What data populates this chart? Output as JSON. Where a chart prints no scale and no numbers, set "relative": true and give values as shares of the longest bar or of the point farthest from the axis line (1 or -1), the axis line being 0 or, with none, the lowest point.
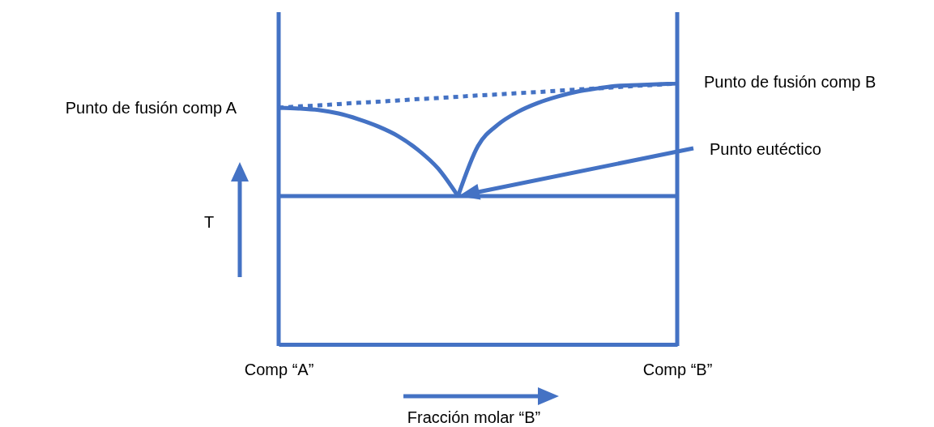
{
  "chart_data": {
    "type": "line",
    "relative": true,
    "xlabel": "Fracción molar “B”",
    "ylabel": "T",
    "categories": [
      "Comp “A”",
      null,
      null,
      null,
      null,
      null,
      null,
      null,
      null,
      null,
      null,
      null,
      null,
      null,
      null,
      null,
      null,
      null,
      null,
      null,
      "Comp “B”"
    ],
    "marker": "none",
    "series": [
      {
        "color": "#4472c4",
        "line_style": "solid",
        "values": [
          0.907,
          0.904,
          0.898,
          0.885,
          0.863,
          0.835,
          0.798,
          0.745,
          0.674,
          0.568,
          null,
          null,
          null,
          null,
          null,
          null,
          null,
          null,
          null,
          null,
          null
        ]
      },
      {
        "color": "#4472c4",
        "line_style": "solid",
        "values": [
          null,
          null,
          null,
          null,
          null,
          null,
          null,
          null,
          null,
          0.568,
          0.76,
          0.842,
          0.891,
          0.925,
          0.95,
          0.969,
          0.981,
          0.991,
          0.994,
          0.997,
          1
        ]
      },
      {
        "color": "#4472c4",
        "line_style": "dotted",
        "values": [
          0.907,
          0.912,
          0.916,
          0.921,
          0.926,
          0.93,
          0.935,
          0.94,
          0.944,
          0.949,
          0.954,
          0.958,
          0.963,
          0.967,
          0.972,
          0.977,
          0.981,
          0.986,
          0.991,
          0.995,
          1
        ]
      }
    ],
    "ref_lines": [
      {
        "axis": "y",
        "value": 0.568,
        "color": "#4472c4"
      },
      {
        "axis": "x",
        "value": "Comp “A”",
        "color": "#4472c4"
      },
      {
        "axis": "x",
        "value": "Comp “B”",
        "color": "#4472c4"
      }
    ],
    "annotations": [
      "Punto de fusión comp A",
      "Punto de fusión comp B",
      "Punto eutéctico"
    ]
  }
}
